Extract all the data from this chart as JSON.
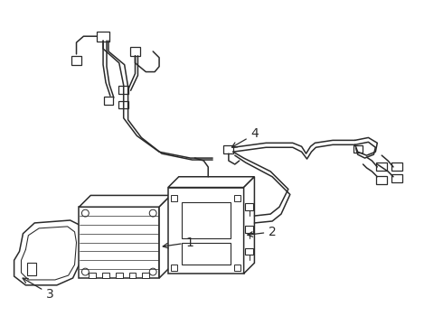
{
  "background_color": "#ffffff",
  "line_color": "#2a2a2a",
  "line_width": 1.1,
  "label_color": "#111111",
  "label_fontsize": 10
}
